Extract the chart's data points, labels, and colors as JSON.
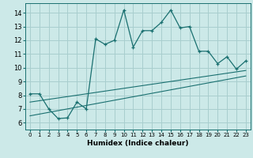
{
  "title": "",
  "xlabel": "Humidex (Indice chaleur)",
  "ylabel": "",
  "bg_color": "#cce9e8",
  "grid_color": "#a8cece",
  "line_color": "#1a7070",
  "x_ticks": [
    0,
    1,
    2,
    3,
    4,
    5,
    6,
    7,
    8,
    9,
    10,
    11,
    12,
    13,
    14,
    15,
    16,
    17,
    18,
    19,
    20,
    21,
    22,
    23
  ],
  "y_ticks": [
    6,
    7,
    8,
    9,
    10,
    11,
    12,
    13,
    14
  ],
  "ylim": [
    5.5,
    14.7
  ],
  "xlim": [
    -0.5,
    23.5
  ],
  "curve1_x": [
    0,
    1,
    2,
    3,
    4,
    5,
    6,
    7,
    8,
    9,
    10,
    11,
    12,
    13,
    14,
    15,
    16,
    17,
    18,
    19,
    20,
    21,
    22,
    23
  ],
  "curve1_y": [
    8.1,
    8.1,
    7.0,
    6.3,
    6.35,
    7.5,
    7.0,
    12.1,
    11.7,
    12.0,
    14.2,
    11.5,
    12.7,
    12.7,
    13.3,
    14.2,
    12.9,
    13.0,
    11.2,
    11.2,
    10.3,
    10.8,
    9.9,
    10.5
  ],
  "line1_x": [
    0,
    23
  ],
  "line1_y": [
    7.5,
    9.8
  ],
  "line2_x": [
    0,
    23
  ],
  "line2_y": [
    6.5,
    9.4
  ]
}
